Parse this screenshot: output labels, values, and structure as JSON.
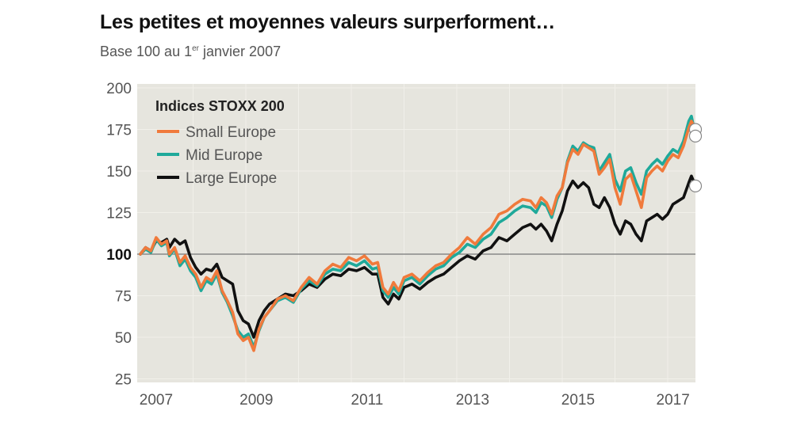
{
  "header": {
    "title": "Les petites et moyennes valeurs surperforment…",
    "subtitle_prefix": "Base 100 au 1",
    "subtitle_sup": "er",
    "subtitle_suffix": " janvier 2007"
  },
  "chart_data": {
    "type": "line",
    "title": "Les petites et moyennes valeurs surperforment…",
    "subtitle": "Base 100 au 1er janvier 2007",
    "xlabel": "",
    "ylabel": "",
    "xlim": [
      2007.0,
      2017.53
    ],
    "ylim": [
      25,
      200
    ],
    "y_ticks": [
      25,
      50,
      75,
      100,
      125,
      150,
      175,
      200
    ],
    "y_tick_labels": [
      "25",
      "50",
      "75",
      "100",
      "125",
      "150",
      "175",
      "200"
    ],
    "baseline": 100,
    "x_ticks": [
      2007.3,
      2009.2,
      2011.3,
      2013.3,
      2015.3,
      2017.1
    ],
    "x_tick_labels": [
      "2007",
      "2009",
      "2011",
      "2013",
      "2015",
      "2017"
    ],
    "grid": true,
    "background": "#E6E5DE",
    "legend": {
      "title": "Indices STOXX 200",
      "position": "top-left"
    },
    "series": [
      {
        "name": "Small Europe",
        "color": "#F07A3C",
        "x": [
          2007.0,
          2007.1,
          2007.2,
          2007.3,
          2007.4,
          2007.5,
          2007.55,
          2007.65,
          2007.75,
          2007.85,
          2007.95,
          2008.05,
          2008.15,
          2008.25,
          2008.35,
          2008.45,
          2008.55,
          2008.65,
          2008.75,
          2008.85,
          2008.95,
          2009.05,
          2009.15,
          2009.25,
          2009.35,
          2009.45,
          2009.6,
          2009.75,
          2009.9,
          2010.05,
          2010.2,
          2010.35,
          2010.5,
          2010.65,
          2010.8,
          2010.95,
          2011.1,
          2011.25,
          2011.4,
          2011.5,
          2011.6,
          2011.7,
          2011.8,
          2011.9,
          2012.0,
          2012.15,
          2012.3,
          2012.45,
          2012.6,
          2012.75,
          2012.9,
          2013.05,
          2013.2,
          2013.35,
          2013.5,
          2013.65,
          2013.8,
          2013.95,
          2014.1,
          2014.25,
          2014.4,
          2014.5,
          2014.6,
          2014.7,
          2014.8,
          2014.9,
          2015.0,
          2015.1,
          2015.2,
          2015.3,
          2015.4,
          2015.5,
          2015.6,
          2015.7,
          2015.8,
          2015.9,
          2016.0,
          2016.1,
          2016.2,
          2016.3,
          2016.4,
          2016.5,
          2016.6,
          2016.7,
          2016.8,
          2016.9,
          2017.0,
          2017.1,
          2017.2,
          2017.3,
          2017.4,
          2017.45,
          2017.53
        ],
        "values": [
          100,
          104,
          102,
          110,
          106,
          108,
          100,
          104,
          95,
          99,
          92,
          88,
          80,
          86,
          84,
          90,
          78,
          72,
          65,
          52,
          48,
          50,
          42,
          55,
          62,
          66,
          73,
          75,
          72,
          80,
          86,
          82,
          90,
          94,
          92,
          98,
          96,
          99,
          94,
          95,
          80,
          76,
          83,
          78,
          86,
          88,
          84,
          89,
          93,
          95,
          100,
          104,
          110,
          106,
          112,
          116,
          124,
          126,
          130,
          133,
          132,
          128,
          134,
          131,
          124,
          135,
          140,
          155,
          163,
          160,
          166,
          164,
          162,
          148,
          152,
          157,
          140,
          130,
          145,
          148,
          138,
          128,
          146,
          150,
          153,
          150,
          156,
          160,
          158,
          165,
          176,
          180,
          175
        ]
      },
      {
        "name": "Mid Europe",
        "color": "#1FA99A",
        "x": [
          2007.0,
          2007.1,
          2007.2,
          2007.3,
          2007.4,
          2007.5,
          2007.55,
          2007.65,
          2007.75,
          2007.85,
          2007.95,
          2008.05,
          2008.15,
          2008.25,
          2008.35,
          2008.45,
          2008.55,
          2008.65,
          2008.75,
          2008.85,
          2008.95,
          2009.05,
          2009.15,
          2009.25,
          2009.35,
          2009.45,
          2009.6,
          2009.75,
          2009.9,
          2010.05,
          2010.2,
          2010.35,
          2010.5,
          2010.65,
          2010.8,
          2010.95,
          2011.1,
          2011.25,
          2011.4,
          2011.5,
          2011.6,
          2011.7,
          2011.8,
          2011.9,
          2012.0,
          2012.15,
          2012.3,
          2012.45,
          2012.6,
          2012.75,
          2012.9,
          2013.05,
          2013.2,
          2013.35,
          2013.5,
          2013.65,
          2013.8,
          2013.95,
          2014.1,
          2014.25,
          2014.4,
          2014.5,
          2014.6,
          2014.7,
          2014.8,
          2014.9,
          2015.0,
          2015.1,
          2015.2,
          2015.3,
          2015.4,
          2015.5,
          2015.6,
          2015.7,
          2015.8,
          2015.9,
          2016.0,
          2016.1,
          2016.2,
          2016.3,
          2016.4,
          2016.5,
          2016.6,
          2016.7,
          2016.8,
          2016.9,
          2017.0,
          2017.1,
          2017.2,
          2017.3,
          2017.4,
          2017.45,
          2017.53
        ],
        "values": [
          100,
          103,
          101,
          109,
          105,
          107,
          99,
          103,
          93,
          97,
          90,
          86,
          78,
          84,
          82,
          88,
          77,
          71,
          63,
          54,
          50,
          52,
          44,
          54,
          62,
          66,
          72,
          74,
          71,
          79,
          84,
          81,
          88,
          91,
          90,
          95,
          93,
          96,
          91,
          92,
          78,
          74,
          80,
          76,
          84,
          86,
          82,
          87,
          91,
          93,
          98,
          101,
          106,
          104,
          109,
          112,
          119,
          122,
          126,
          129,
          128,
          125,
          131,
          129,
          122,
          133,
          140,
          156,
          165,
          162,
          167,
          165,
          164,
          150,
          155,
          160,
          145,
          138,
          150,
          152,
          143,
          136,
          150,
          154,
          157,
          154,
          159,
          163,
          161,
          168,
          180,
          183,
          171
        ]
      },
      {
        "name": "Large Europe",
        "color": "#111111",
        "x": [
          2007.0,
          2007.1,
          2007.2,
          2007.3,
          2007.4,
          2007.5,
          2007.55,
          2007.65,
          2007.75,
          2007.85,
          2007.95,
          2008.05,
          2008.15,
          2008.25,
          2008.35,
          2008.45,
          2008.55,
          2008.65,
          2008.75,
          2008.85,
          2008.95,
          2009.05,
          2009.15,
          2009.25,
          2009.35,
          2009.45,
          2009.6,
          2009.75,
          2009.9,
          2010.05,
          2010.2,
          2010.35,
          2010.5,
          2010.65,
          2010.8,
          2010.95,
          2011.1,
          2011.25,
          2011.4,
          2011.5,
          2011.6,
          2011.7,
          2011.8,
          2011.9,
          2012.0,
          2012.15,
          2012.3,
          2012.45,
          2012.6,
          2012.75,
          2012.9,
          2013.05,
          2013.2,
          2013.35,
          2013.5,
          2013.65,
          2013.8,
          2013.95,
          2014.1,
          2014.25,
          2014.4,
          2014.5,
          2014.6,
          2014.7,
          2014.8,
          2014.9,
          2015.0,
          2015.1,
          2015.2,
          2015.3,
          2015.4,
          2015.5,
          2015.6,
          2015.7,
          2015.8,
          2015.9,
          2016.0,
          2016.1,
          2016.2,
          2016.3,
          2016.4,
          2016.5,
          2016.6,
          2016.7,
          2016.8,
          2016.9,
          2017.0,
          2017.1,
          2017.2,
          2017.3,
          2017.4,
          2017.45,
          2017.53
        ],
        "values": [
          100,
          104,
          102,
          108,
          107,
          109,
          104,
          109,
          106,
          108,
          98,
          92,
          88,
          91,
          90,
          94,
          86,
          84,
          82,
          66,
          60,
          58,
          50,
          60,
          66,
          70,
          73,
          76,
          75,
          78,
          82,
          80,
          85,
          88,
          87,
          91,
          90,
          92,
          88,
          88,
          74,
          70,
          76,
          73,
          80,
          82,
          79,
          83,
          86,
          88,
          92,
          96,
          99,
          97,
          102,
          104,
          110,
          108,
          112,
          116,
          118,
          115,
          118,
          114,
          108,
          118,
          126,
          138,
          144,
          140,
          143,
          140,
          130,
          128,
          134,
          128,
          118,
          112,
          120,
          118,
          112,
          108,
          120,
          122,
          124,
          121,
          124,
          130,
          132,
          134,
          143,
          147,
          141
        ]
      }
    ]
  }
}
